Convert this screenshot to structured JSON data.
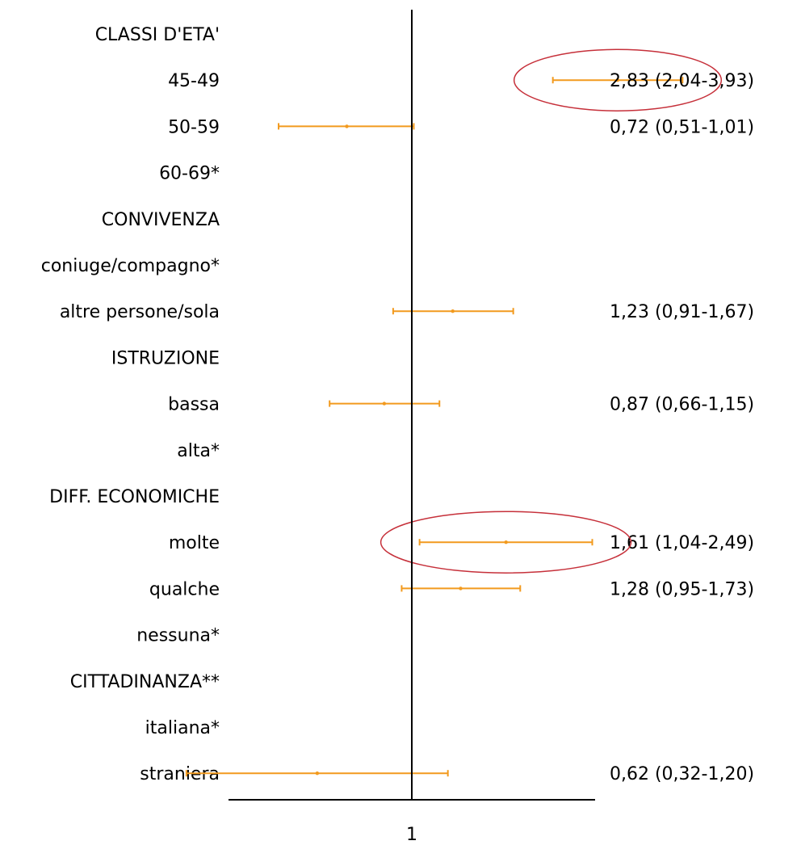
{
  "chart_data": {
    "type": "scatter",
    "subtype": "forest-plot",
    "reference_line": 1,
    "x_tick_labels": [
      "1"
    ],
    "log_scale": true,
    "title": "",
    "xlabel": "",
    "ylabel": "",
    "colors": {
      "marker": "#F29A1E",
      "axis": "#000000",
      "highlight": "#C6303A"
    },
    "rows": [
      {
        "label": "CLASSI D'ETA'",
        "header": true
      },
      {
        "label": "45-49",
        "or": 2.83,
        "lo": 2.04,
        "hi": 3.93,
        "text": "2,83 (2,04-3,93)",
        "highlighted": true
      },
      {
        "label": "50-59",
        "or": 0.72,
        "lo": 0.51,
        "hi": 1.01,
        "text": "0,72 (0,51-1,01)"
      },
      {
        "label": "60-69*"
      },
      {
        "label": "CONVIVENZA",
        "header": true
      },
      {
        "label": "coniuge/compagno*"
      },
      {
        "label": "altre persone/sola",
        "or": 1.23,
        "lo": 0.91,
        "hi": 1.67,
        "text": "1,23 (0,91-1,67)"
      },
      {
        "label": "ISTRUZIONE",
        "header": true
      },
      {
        "label": "bassa",
        "or": 0.87,
        "lo": 0.66,
        "hi": 1.15,
        "text": "0,87 (0,66-1,15)"
      },
      {
        "label": "alta*"
      },
      {
        "label": "DIFF. ECONOMICHE",
        "header": true
      },
      {
        "label": "molte",
        "or": 1.61,
        "lo": 1.04,
        "hi": 2.49,
        "text": "1,61 (1,04-2,49)",
        "highlighted": true
      },
      {
        "label": "qualche",
        "or": 1.28,
        "lo": 0.95,
        "hi": 1.73,
        "text": "1,28 (0,95-1,73)"
      },
      {
        "label": "nessuna*"
      },
      {
        "label": "CITTADINANZA**",
        "header": true
      },
      {
        "label": "italiana*"
      },
      {
        "label": "straniera",
        "or": 0.62,
        "lo": 0.32,
        "hi": 1.2,
        "text": "0,62 (0,32-1,20)"
      }
    ]
  }
}
